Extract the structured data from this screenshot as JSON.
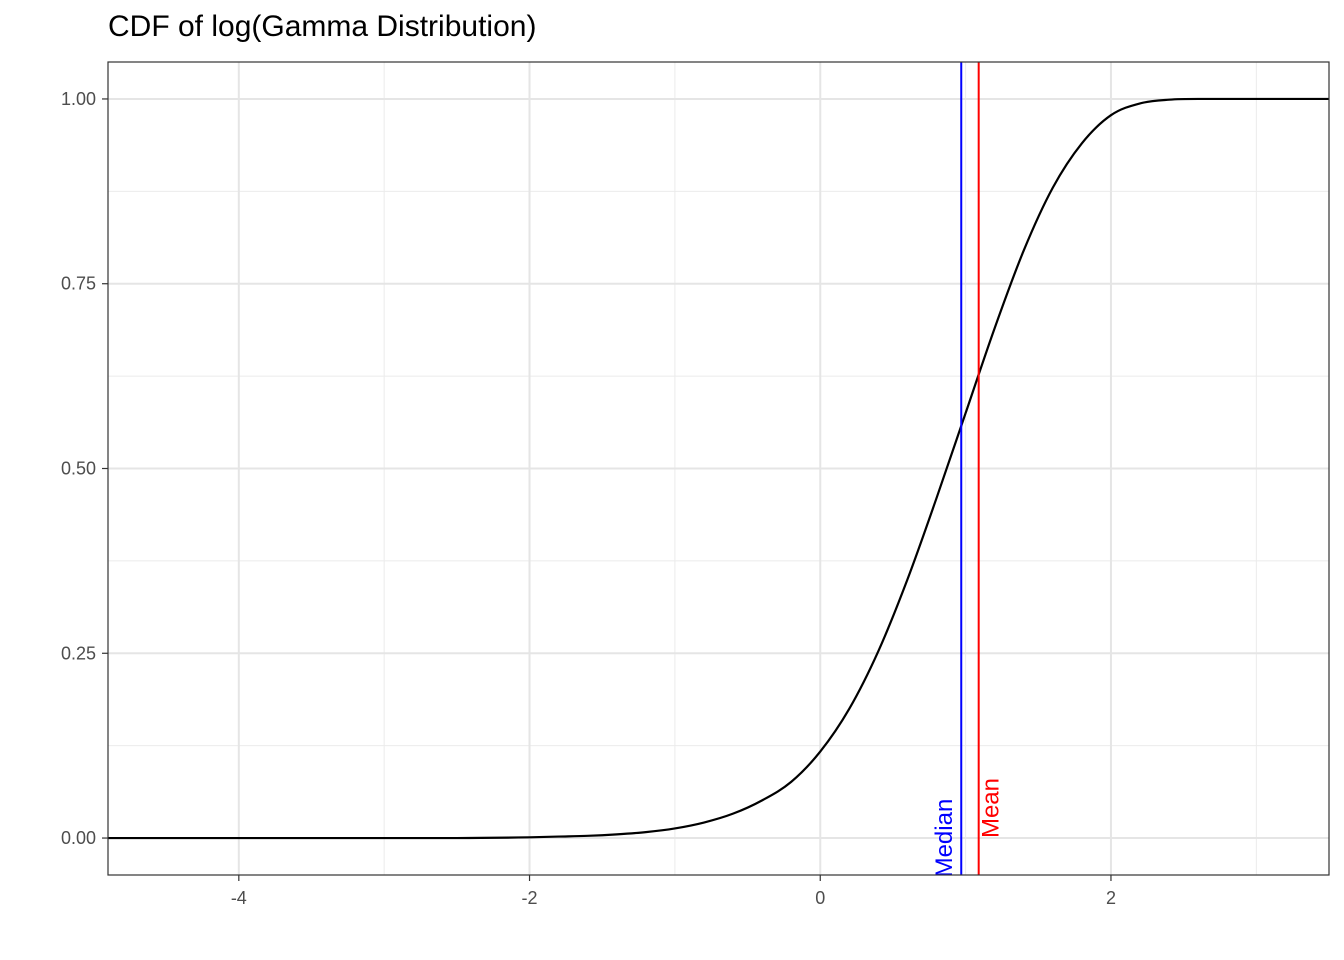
{
  "title": "CDF of log(Gamma Distribution)",
  "chart_data": {
    "type": "line",
    "title": "CDF of log(Gamma Distribution)",
    "xlabel": "",
    "ylabel": "",
    "xlim": [
      -4.9,
      3.5
    ],
    "ylim": [
      -0.05,
      1.05
    ],
    "grid": true,
    "x_ticks": [
      -4,
      -2,
      0,
      2
    ],
    "x_tick_labels": [
      "-4",
      "-2",
      "0",
      "2"
    ],
    "y_ticks": [
      0,
      0.25,
      0.5,
      0.75,
      1
    ],
    "y_tick_labels": [
      "0.00",
      "0.25",
      "0.50",
      "0.75",
      "1.00"
    ],
    "series": [
      {
        "color": "#000000",
        "x": [
          -4.9,
          -4.0,
          -3.0,
          -2.5,
          -2.0,
          -1.8,
          -1.6,
          -1.4,
          -1.2,
          -1.0,
          -0.8,
          -0.6,
          -0.4,
          -0.2,
          0.0,
          0.2,
          0.4,
          0.6,
          0.8,
          1.0,
          1.2,
          1.4,
          1.6,
          1.8,
          2.0,
          2.2,
          2.4,
          2.6,
          2.8,
          3.0,
          3.5
        ],
        "y": [
          0.0,
          0.0,
          0.0,
          0.0,
          0.001,
          0.002,
          0.003,
          0.005,
          0.008,
          0.013,
          0.021,
          0.033,
          0.051,
          0.076,
          0.117,
          0.175,
          0.253,
          0.35,
          0.46,
          0.575,
          0.69,
          0.795,
          0.88,
          0.94,
          0.978,
          0.994,
          0.999,
          1.0,
          1.0,
          1.0,
          1.0
        ]
      }
    ],
    "reference_lines": [
      {
        "label": "Median",
        "x": 0.97,
        "color": "#0000ff"
      },
      {
        "label": "Mean",
        "x": 1.09,
        "color": "#ff0000"
      }
    ]
  }
}
